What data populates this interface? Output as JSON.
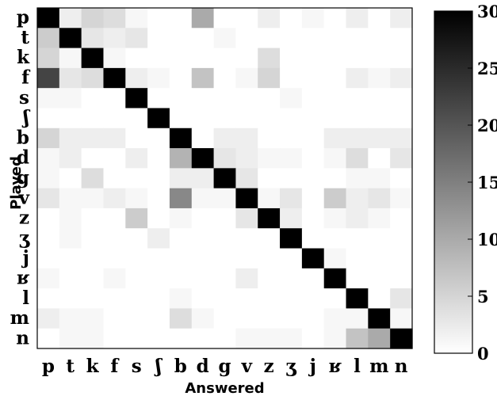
{
  "chart_data": {
    "type": "heatmap",
    "title": "",
    "xlabel": "Answered",
    "ylabel": "Played",
    "x_labels": [
      "p",
      "t",
      "k",
      "f",
      "s",
      "ʃ",
      "b",
      "d",
      "g",
      "v",
      "z",
      "ʒ",
      "j",
      "ʁ",
      "l",
      "m",
      "n"
    ],
    "y_labels": [
      "p",
      "t",
      "k",
      "f",
      "s",
      "ʃ",
      "b",
      "d",
      "g",
      "v",
      "z",
      "ʒ",
      "j",
      "ʁ",
      "l",
      "m",
      "n"
    ],
    "colorbar": {
      "min": 0,
      "max": 30,
      "ticks": [
        0,
        5,
        10,
        15,
        20,
        25,
        30
      ],
      "colormap": "gray-reversed"
    },
    "values": [
      [
        30,
        2,
        5,
        4,
        1,
        0,
        0,
        10,
        0,
        0,
        2,
        0,
        1,
        0,
        2,
        0,
        2
      ],
      [
        6,
        30,
        3,
        2,
        3,
        0,
        0,
        0,
        1,
        0,
        0,
        0,
        0,
        0,
        0,
        0,
        0
      ],
      [
        5,
        1,
        30,
        1,
        0,
        0,
        0,
        0,
        0,
        0,
        4,
        0,
        0,
        0,
        0,
        0,
        0
      ],
      [
        22,
        3,
        4,
        30,
        2,
        1,
        0,
        7,
        0,
        1,
        5,
        0,
        0,
        0,
        2,
        1,
        2
      ],
      [
        1,
        1,
        0,
        0,
        30,
        0,
        0,
        0,
        0,
        0,
        0,
        1,
        0,
        0,
        0,
        0,
        0
      ],
      [
        0,
        0,
        0,
        0,
        0,
        30,
        0,
        0,
        0,
        0,
        0,
        0,
        0,
        0,
        0,
        0,
        0
      ],
      [
        5,
        2,
        2,
        2,
        0,
        0,
        30,
        0,
        2,
        2,
        0,
        0,
        0,
        2,
        2,
        2,
        2
      ],
      [
        1,
        2,
        0,
        0,
        2,
        0,
        9,
        30,
        3,
        2,
        1,
        1,
        0,
        1,
        4,
        0,
        3
      ],
      [
        1,
        0,
        4,
        0,
        0,
        0,
        2,
        2,
        30,
        3,
        0,
        0,
        0,
        0,
        1,
        1,
        0
      ],
      [
        3,
        1,
        1,
        2,
        1,
        0,
        14,
        1,
        1,
        30,
        1,
        3,
        0,
        6,
        2,
        3,
        1
      ],
      [
        0,
        1,
        0,
        0,
        6,
        0,
        1,
        0,
        0,
        3,
        30,
        2,
        0,
        1,
        2,
        1,
        0
      ],
      [
        0,
        1,
        0,
        0,
        0,
        2,
        0,
        0,
        0,
        0,
        0,
        30,
        0,
        0,
        0,
        0,
        0
      ],
      [
        0,
        0,
        0,
        0,
        0,
        0,
        0,
        0,
        0,
        0,
        0,
        0,
        30,
        1,
        0,
        0,
        0
      ],
      [
        1,
        0,
        0,
        1,
        0,
        0,
        0,
        0,
        0,
        2,
        0,
        0,
        0,
        30,
        0,
        0,
        0
      ],
      [
        0,
        0,
        0,
        0,
        0,
        0,
        1,
        0,
        0,
        0,
        0,
        0,
        0,
        0,
        30,
        0,
        3
      ],
      [
        2,
        1,
        1,
        0,
        0,
        0,
        4,
        1,
        0,
        0,
        0,
        0,
        0,
        1,
        1,
        30,
        1
      ],
      [
        0,
        1,
        1,
        0,
        0,
        0,
        0,
        0,
        0,
        1,
        1,
        1,
        0,
        1,
        7,
        10,
        30
      ]
    ]
  }
}
